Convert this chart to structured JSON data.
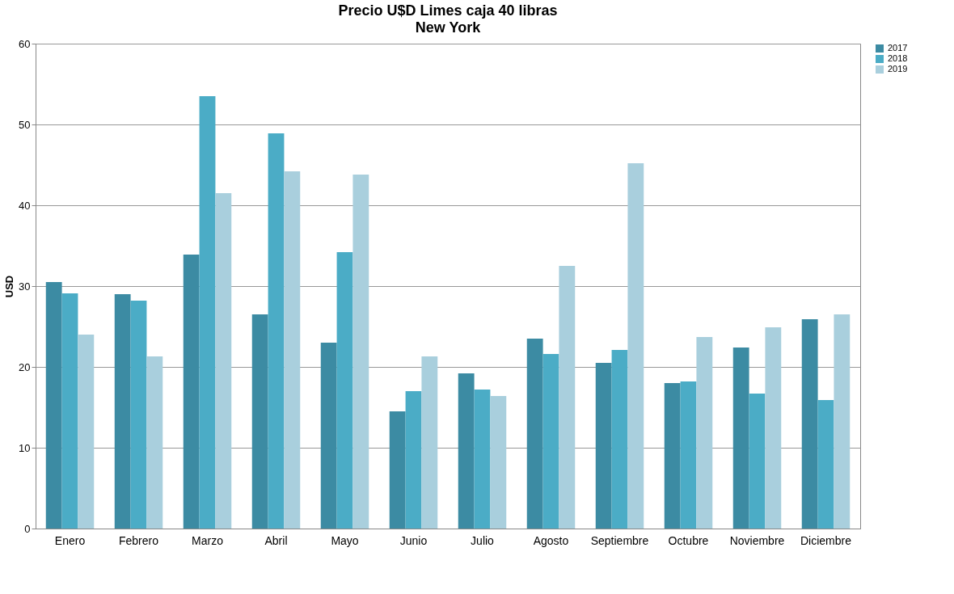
{
  "chart_data": {
    "type": "bar",
    "title": "Precio U$D Limes caja 40 libras",
    "subtitle": "New York",
    "ylabel": "USD",
    "categories": [
      "Enero",
      "Febrero",
      "Marzo",
      "Abril",
      "Mayo",
      "Junio",
      "Julio",
      "Agosto",
      "Septiembre",
      "Octubre",
      "Noviembre",
      "Diciembre"
    ],
    "series": [
      {
        "name": "2017",
        "color": "#3c8ba3",
        "values": [
          30.5,
          29.0,
          33.9,
          26.5,
          23.0,
          14.5,
          19.2,
          23.5,
          20.5,
          18.0,
          22.4,
          25.9
        ]
      },
      {
        "name": "2018",
        "color": "#4bacc6",
        "values": [
          29.1,
          28.2,
          53.5,
          48.9,
          34.2,
          17.0,
          17.2,
          21.6,
          22.1,
          18.2,
          16.7,
          15.9
        ]
      },
      {
        "name": "2019",
        "color": "#a9cfdd",
        "values": [
          24.0,
          21.3,
          41.5,
          44.2,
          43.8,
          21.3,
          16.4,
          32.5,
          45.2,
          23.7,
          24.9,
          26.5
        ]
      }
    ],
    "ylim": [
      0,
      60
    ],
    "yticks": [
      0,
      10,
      20,
      30,
      40,
      50,
      60
    ],
    "grid": "y",
    "legend": "right"
  }
}
